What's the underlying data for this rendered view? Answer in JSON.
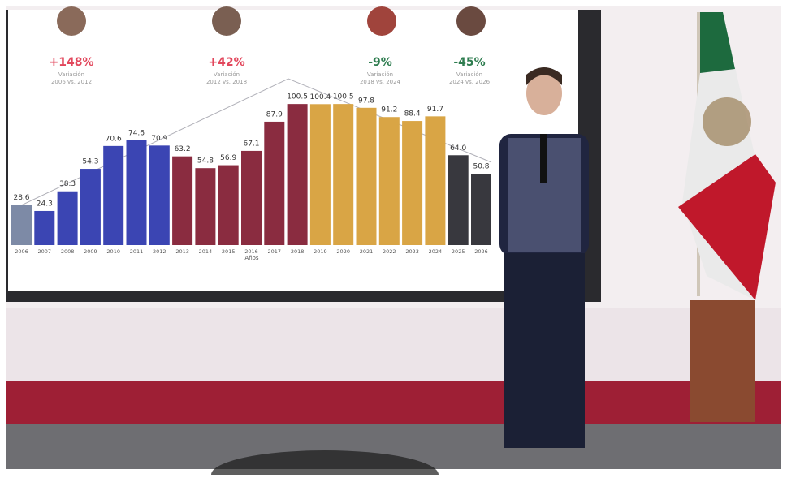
{
  "chart_data": {
    "type": "bar",
    "x_label": "Años",
    "categories": [
      "2006",
      "2007",
      "2008",
      "2009",
      "2010",
      "2011",
      "2012",
      "2013",
      "2014",
      "2015",
      "2016",
      "2017",
      "2018",
      "2019",
      "2020",
      "2021",
      "2022",
      "2023",
      "2024",
      "2025",
      "2026"
    ],
    "values": [
      28.6,
      24.3,
      38.3,
      54.3,
      70.6,
      74.6,
      70.9,
      63.2,
      54.8,
      56.9,
      67.1,
      87.9,
      100.5,
      100.4,
      100.5,
      97.8,
      91.2,
      88.4,
      91.7,
      64.0,
      50.8
    ],
    "value_labels": [
      "28.6",
      "24.3",
      "38.3",
      "54.3",
      "70.6",
      "74.6",
      "70.9",
      "63.2",
      "54.8",
      "56.9",
      "67.1",
      "87.9",
      "100.5",
      "100.4",
      "100.5",
      "97.8",
      "91.2",
      "88.4",
      "91.7",
      "64.0",
      "50.8"
    ],
    "colors": [
      "#7d8aa6",
      "#3b45b3",
      "#3b45b3",
      "#3b45b3",
      "#3b45b3",
      "#3b45b3",
      "#3b45b3",
      "#8a2c40",
      "#8a2c40",
      "#8a2c40",
      "#8a2c40",
      "#8a2c40",
      "#8a2c40",
      "#d9a545",
      "#d9a545",
      "#d9a545",
      "#d9a545",
      "#d9a545",
      "#d9a545",
      "#38383e",
      "#38383e"
    ],
    "annotations": [
      {
        "text": "+148%",
        "lines": [
          "Variación",
          "2006 vs. 2012"
        ],
        "color": "#e2475c"
      },
      {
        "text": "+42%",
        "lines": [
          "Variación",
          "2012 vs. 2018"
        ],
        "color": "#e2475c"
      },
      {
        "text": "-9%",
        "lines": [
          "Variación",
          "2018 vs. 2024"
        ],
        "color": "#2f7d50"
      },
      {
        "text": "-45%",
        "lines": [
          "Variación",
          "2024 vs. 2026"
        ],
        "color": "#2f7d50"
      }
    ]
  }
}
